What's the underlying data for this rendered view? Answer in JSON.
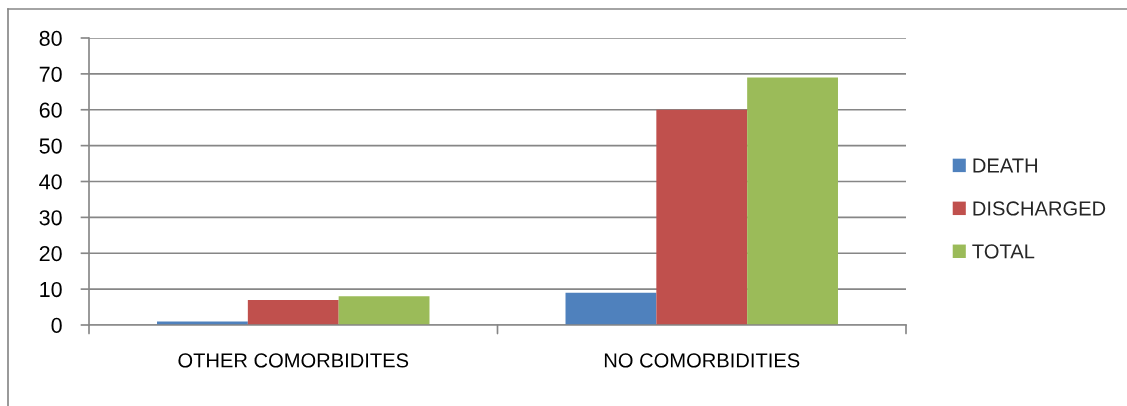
{
  "chart_data": {
    "type": "bar",
    "categories": [
      "OTHER COMORBIDITES",
      "NO COMORBIDITIES"
    ],
    "series": [
      {
        "name": "DEATH",
        "color": "#4f81bd",
        "values": [
          1,
          9
        ]
      },
      {
        "name": "DISCHARGED",
        "color": "#c0504d",
        "values": [
          7,
          60
        ]
      },
      {
        "name": "TOTAL",
        "color": "#9bbb59",
        "values": [
          8,
          69
        ]
      }
    ],
    "ylim": [
      0,
      80
    ],
    "yticks": [
      0,
      10,
      20,
      30,
      40,
      50,
      60,
      70,
      80
    ],
    "grid": "y",
    "legend": "right"
  }
}
